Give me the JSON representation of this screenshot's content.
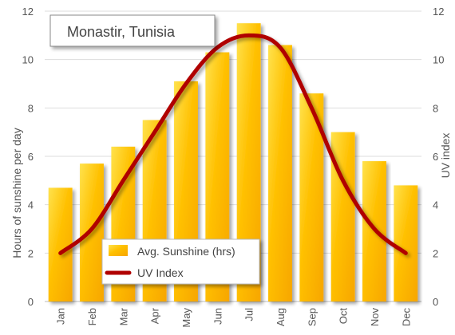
{
  "chart_data": {
    "type": "bar",
    "title": "Monastir, Tunisia",
    "categories": [
      "Jan",
      "Feb",
      "Mar",
      "Apr",
      "May",
      "Jun",
      "Jul",
      "Aug",
      "Sep",
      "Oct",
      "Nov",
      "Dec"
    ],
    "series": [
      {
        "name": "Avg. Sunshine (hrs)",
        "type": "bar",
        "axis": "left",
        "values": [
          4.7,
          5.7,
          6.4,
          7.5,
          9.1,
          10.3,
          11.5,
          10.6,
          8.6,
          7.0,
          5.8,
          4.8
        ]
      },
      {
        "name": "UV Index",
        "type": "line",
        "axis": "right",
        "values": [
          2,
          3,
          5,
          7,
          9,
          10.5,
          11,
          10.5,
          8,
          5,
          3,
          2
        ]
      }
    ],
    "ylabel": "Hours of sunshine per day",
    "ylabel_right": "UV index",
    "ylim": [
      0,
      12
    ],
    "ylim_right": [
      0,
      12
    ],
    "yticks": [
      0,
      2,
      4,
      6,
      8,
      10,
      12
    ],
    "grid": true,
    "legend_position": "bottom-left",
    "colors": {
      "bar_light": "#ffe04a",
      "bar_dark": "#f5a800",
      "line": "#b00000",
      "grid": "#dddddd",
      "tick": "#555555"
    }
  }
}
